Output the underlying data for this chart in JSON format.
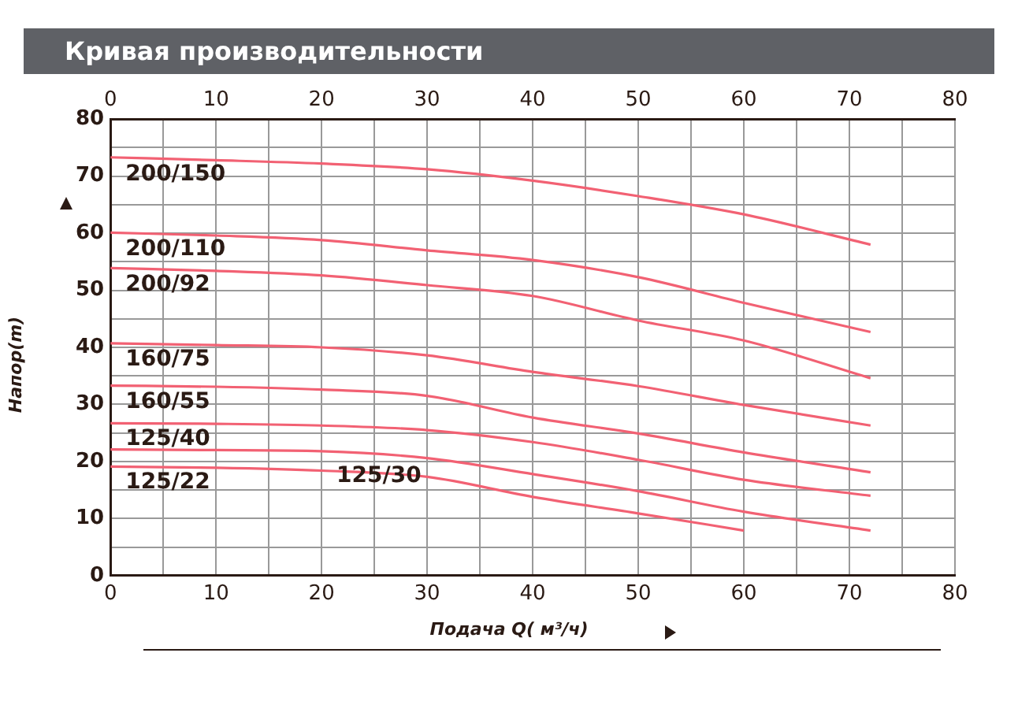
{
  "chart_data": {
    "type": "line",
    "title": "Кривая производительности",
    "xlabel": "Подача Q( м³/ч)",
    "ylabel": "Напор(m)",
    "xlim": [
      0,
      80
    ],
    "xticks": [
      0,
      {
        "value": 5,
        "label": null
      },
      10,
      {
        "value": 15,
        "label": null
      },
      20,
      {
        "value": 25,
        "label": null
      },
      30,
      {
        "value": 35,
        "label": null
      },
      40,
      {
        "value": 45,
        "label": null
      },
      50,
      {
        "value": 55,
        "label": null
      },
      60,
      {
        "value": 65,
        "label": null
      },
      70,
      {
        "value": 75,
        "label": null
      },
      80
    ],
    "x2lim": [
      0,
      80
    ],
    "x2ticks": [
      0,
      10,
      20,
      30,
      40,
      50,
      60,
      70,
      80
    ],
    "ylim": [
      0,
      80
    ],
    "yticks": [
      0,
      {
        "value": 5,
        "label": null
      },
      10,
      {
        "value": 15,
        "label": null
      },
      20,
      {
        "value": 25,
        "label": null
      },
      30,
      {
        "value": 35,
        "label": null
      },
      40,
      {
        "value": 45,
        "label": null
      },
      50,
      {
        "value": 55,
        "label": null
      },
      60,
      {
        "value": 65,
        "label": null
      },
      70,
      {
        "value": 75,
        "label": null
      },
      80
    ],
    "grid": true,
    "legend": false,
    "line_style": "solid",
    "x": [
      0,
      10,
      20,
      30,
      40,
      50,
      60,
      72
    ],
    "series": [
      {
        "name": "200/150",
        "color": "#f26173",
        "values": [
          73.3,
          72.8,
          72.2,
          71.2,
          69.2,
          66.5,
          63.3,
          58.0
        ]
      },
      {
        "name": "200/110",
        "color": "#f26173",
        "values": [
          60.1,
          59.6,
          58.8,
          57.0,
          55.3,
          52.3,
          47.8,
          42.7
        ]
      },
      {
        "name": "200/92",
        "color": "#f26173",
        "values": [
          53.9,
          53.4,
          52.6,
          50.9,
          49.0,
          44.7,
          41.2,
          34.6
        ]
      },
      {
        "name": "160/75",
        "color": "#f26173",
        "values": [
          40.7,
          40.4,
          40.0,
          38.6,
          35.7,
          33.2,
          29.9,
          26.3
        ]
      },
      {
        "name": "160/55",
        "color": "#f26173",
        "values": [
          33.3,
          33.1,
          32.6,
          31.5,
          27.7,
          24.9,
          21.6,
          18.1
        ]
      },
      {
        "name": "125/40",
        "color": "#f26173",
        "values": [
          26.7,
          26.6,
          26.3,
          25.5,
          23.4,
          20.3,
          16.8,
          14.0
        ]
      },
      {
        "name": "125/30",
        "color": "#f26173",
        "values": [
          22.1,
          22.0,
          21.8,
          20.6,
          17.8,
          14.8,
          11.2,
          7.9
        ]
      },
      {
        "name": "125/22",
        "color": "#f26173",
        "x": [
          0,
          10,
          20,
          30,
          40,
          50,
          60
        ],
        "values": [
          19.1,
          18.9,
          18.4,
          17.3,
          13.8,
          10.9,
          7.9
        ]
      }
    ]
  }
}
